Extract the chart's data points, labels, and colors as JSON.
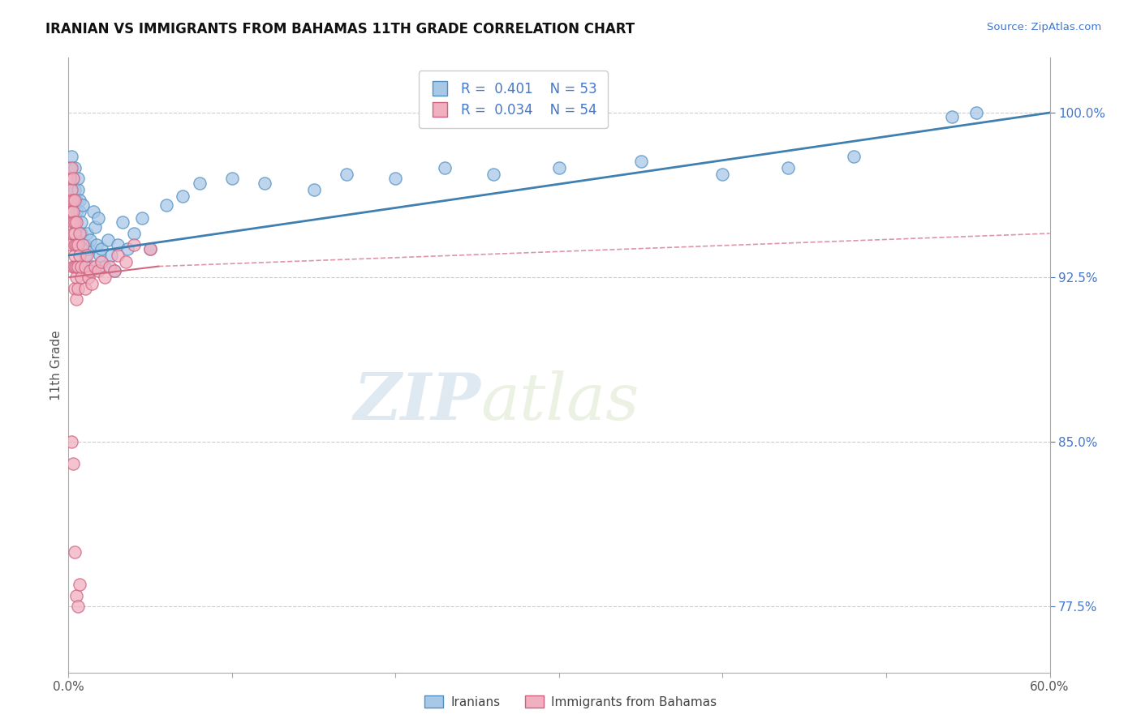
{
  "title": "IRANIAN VS IMMIGRANTS FROM BAHAMAS 11TH GRADE CORRELATION CHART",
  "source_text": "Source: ZipAtlas.com",
  "ylabel": "11th Grade",
  "xlim": [
    0.0,
    0.6
  ],
  "ylim": [
    0.745,
    1.025
  ],
  "xticks": [
    0.0,
    0.1,
    0.2,
    0.3,
    0.4,
    0.5,
    0.6
  ],
  "xticklabels": [
    "0.0%",
    "",
    "",
    "",
    "",
    "",
    "60.0%"
  ],
  "yticks_right": [
    0.775,
    0.85,
    0.925,
    1.0
  ],
  "ytickslabels_right": [
    "77.5%",
    "85.0%",
    "92.5%",
    "100.0%"
  ],
  "grid_color": "#cccccc",
  "background_color": "#ffffff",
  "blue_color": "#a8c8e8",
  "pink_color": "#f0b0c0",
  "blue_edge_color": "#5090c0",
  "pink_edge_color": "#d06080",
  "blue_line_color": "#4080b0",
  "pink_line_color": "#d06880",
  "legend_R_blue": "0.401",
  "legend_N_blue": "53",
  "legend_R_pink": "0.034",
  "legend_N_pink": "54",
  "legend_label_blue": "Iranians",
  "legend_label_pink": "Immigrants from Bahamas",
  "watermark_zip": "ZIP",
  "watermark_atlas": "atlas",
  "iranians_x": [
    0.001,
    0.002,
    0.003,
    0.004,
    0.004,
    0.005,
    0.005,
    0.006,
    0.006,
    0.007,
    0.007,
    0.008,
    0.008,
    0.009,
    0.01,
    0.01,
    0.011,
    0.012,
    0.013,
    0.014,
    0.015,
    0.016,
    0.017,
    0.018,
    0.019,
    0.02,
    0.022,
    0.024,
    0.026,
    0.028,
    0.03,
    0.033,
    0.036,
    0.04,
    0.045,
    0.05,
    0.06,
    0.07,
    0.08,
    0.1,
    0.12,
    0.15,
    0.17,
    0.2,
    0.23,
    0.26,
    0.3,
    0.35,
    0.4,
    0.44,
    0.48,
    0.54,
    0.555
  ],
  "iranians_y": [
    0.975,
    0.98,
    0.97,
    0.965,
    0.975,
    0.96,
    0.955,
    0.965,
    0.97,
    0.955,
    0.96,
    0.95,
    0.945,
    0.958,
    0.94,
    0.935,
    0.945,
    0.938,
    0.942,
    0.93,
    0.955,
    0.948,
    0.94,
    0.952,
    0.935,
    0.938,
    0.93,
    0.942,
    0.935,
    0.928,
    0.94,
    0.95,
    0.938,
    0.945,
    0.952,
    0.938,
    0.958,
    0.962,
    0.968,
    0.97,
    0.968,
    0.965,
    0.972,
    0.97,
    0.975,
    0.972,
    0.975,
    0.978,
    0.972,
    0.975,
    0.98,
    0.998,
    1.0
  ],
  "bahamas_x": [
    0.001,
    0.001,
    0.002,
    0.002,
    0.002,
    0.002,
    0.003,
    0.003,
    0.003,
    0.003,
    0.003,
    0.003,
    0.004,
    0.004,
    0.004,
    0.004,
    0.004,
    0.004,
    0.004,
    0.005,
    0.005,
    0.005,
    0.005,
    0.005,
    0.006,
    0.006,
    0.006,
    0.007,
    0.007,
    0.008,
    0.008,
    0.009,
    0.01,
    0.01,
    0.011,
    0.012,
    0.013,
    0.014,
    0.016,
    0.018,
    0.02,
    0.022,
    0.025,
    0.028,
    0.03,
    0.035,
    0.04,
    0.05,
    0.002,
    0.003,
    0.004,
    0.005,
    0.006,
    0.007
  ],
  "bahamas_y": [
    0.96,
    0.97,
    0.955,
    0.965,
    0.94,
    0.975,
    0.95,
    0.96,
    0.93,
    0.945,
    0.97,
    0.955,
    0.94,
    0.96,
    0.93,
    0.95,
    0.92,
    0.935,
    0.945,
    0.925,
    0.94,
    0.93,
    0.95,
    0.915,
    0.93,
    0.94,
    0.92,
    0.935,
    0.945,
    0.925,
    0.93,
    0.94,
    0.92,
    0.93,
    0.935,
    0.925,
    0.928,
    0.922,
    0.93,
    0.928,
    0.932,
    0.925,
    0.93,
    0.928,
    0.935,
    0.932,
    0.94,
    0.938,
    0.85,
    0.84,
    0.8,
    0.78,
    0.775,
    0.785
  ]
}
